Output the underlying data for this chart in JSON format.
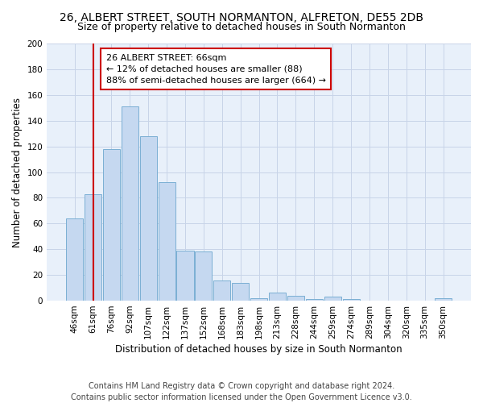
{
  "title": "26, ALBERT STREET, SOUTH NORMANTON, ALFRETON, DE55 2DB",
  "subtitle": "Size of property relative to detached houses in South Normanton",
  "xlabel": "Distribution of detached houses by size in South Normanton",
  "ylabel": "Number of detached properties",
  "bar_labels": [
    "46sqm",
    "61sqm",
    "76sqm",
    "92sqm",
    "107sqm",
    "122sqm",
    "137sqm",
    "152sqm",
    "168sqm",
    "183sqm",
    "198sqm",
    "213sqm",
    "228sqm",
    "244sqm",
    "259sqm",
    "274sqm",
    "289sqm",
    "304sqm",
    "320sqm",
    "335sqm",
    "350sqm"
  ],
  "bar_values": [
    64,
    83,
    118,
    151,
    128,
    92,
    39,
    38,
    16,
    14,
    2,
    6,
    4,
    1,
    3,
    1,
    0,
    0,
    0,
    0,
    2
  ],
  "bar_color": "#c5d8f0",
  "bar_edge_color": "#7bafd4",
  "vline_x": 1,
  "vline_color": "#cc0000",
  "ylim": [
    0,
    200
  ],
  "yticks": [
    0,
    20,
    40,
    60,
    80,
    100,
    120,
    140,
    160,
    180,
    200
  ],
  "annotation_title": "26 ALBERT STREET: 66sqm",
  "annotation_line1": "← 12% of detached houses are smaller (88)",
  "annotation_line2": "88% of semi-detached houses are larger (664) →",
  "annotation_box_color": "#ffffff",
  "annotation_box_edge_color": "#cc0000",
  "footer_line1": "Contains HM Land Registry data © Crown copyright and database right 2024.",
  "footer_line2": "Contains public sector information licensed under the Open Government Licence v3.0.",
  "fig_background_color": "#ffffff",
  "plot_bg_color": "#e8f0fa",
  "grid_color": "#c8d4e8",
  "title_fontsize": 10,
  "subtitle_fontsize": 9,
  "xlabel_fontsize": 8.5,
  "ylabel_fontsize": 8.5,
  "tick_fontsize": 7.5,
  "footer_fontsize": 7,
  "annotation_fontsize": 8
}
